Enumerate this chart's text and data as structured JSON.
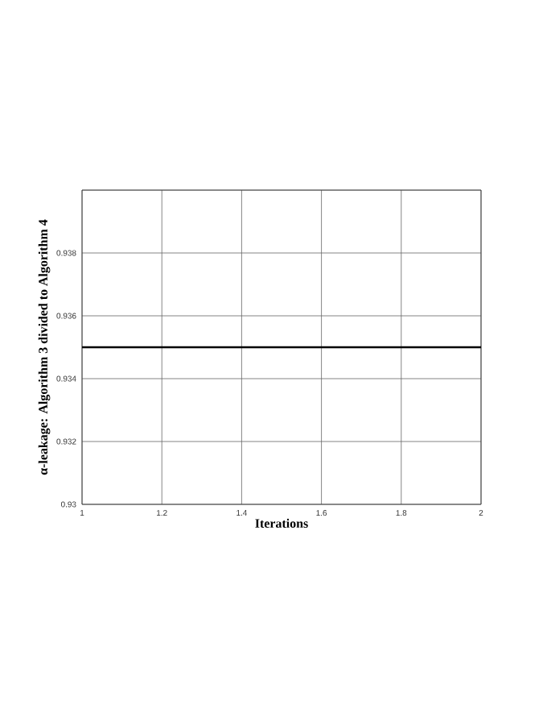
{
  "chart_data": {
    "type": "line",
    "xlabel": "Iterations",
    "ylabel": "α-leakage: Algorithm 3 divided to Algorithm 4",
    "x": [
      1,
      2
    ],
    "series": [
      {
        "color": "#000000",
        "values": [
          0.935,
          0.935
        ]
      }
    ],
    "xlim": [
      1,
      2
    ],
    "xticks": [
      1,
      1.2,
      1.4,
      1.6,
      1.8,
      2
    ],
    "ylim": [
      0.93,
      0.94
    ],
    "yticks": [
      "0.93",
      0.932,
      0.934,
      0.936,
      0.938,
      {
        "value": 0.94,
        "label": null
      }
    ],
    "grid": true,
    "marker": "none",
    "line_style": "solid"
  }
}
